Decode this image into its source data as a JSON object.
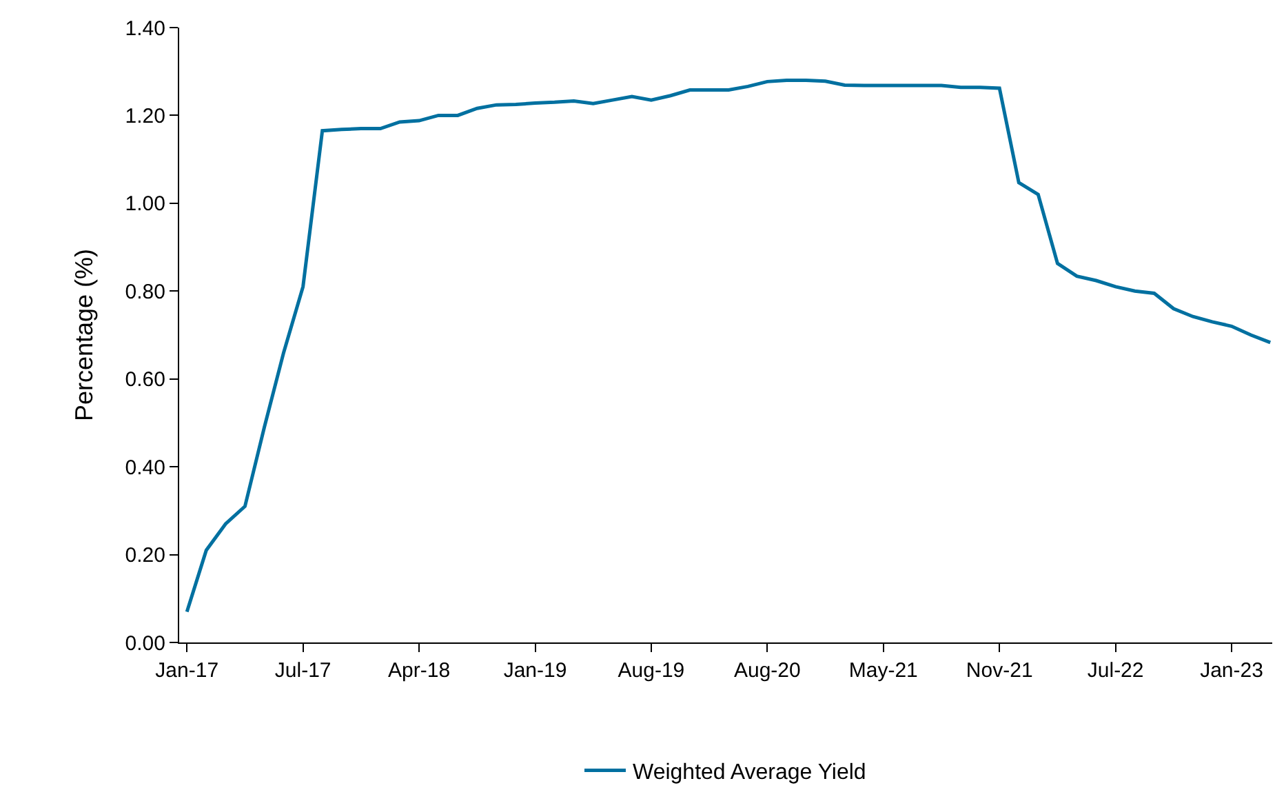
{
  "chart_data": {
    "type": "line",
    "ylabel": "Percentage (%)",
    "categories": [
      "Jan-17",
      null,
      null,
      null,
      null,
      null,
      "Jul-17",
      null,
      null,
      null,
      null,
      null,
      "Apr-18",
      null,
      null,
      null,
      null,
      null,
      "Jan-19",
      null,
      null,
      null,
      null,
      null,
      "Aug-19",
      null,
      null,
      null,
      null,
      null,
      "Aug-20",
      null,
      null,
      null,
      null,
      null,
      "May-21",
      null,
      null,
      null,
      null,
      null,
      "Nov-21",
      null,
      null,
      null,
      null,
      null,
      "Jul-22",
      null,
      null,
      null,
      null,
      null,
      "Jan-23",
      null,
      null
    ],
    "series": [
      {
        "name": "Weighted Average Yield",
        "color": "#0070a0",
        "values": [
          0.07,
          0.21,
          0.27,
          0.31,
          0.49,
          0.66,
          0.81,
          1.165,
          1.168,
          1.17,
          1.17,
          1.185,
          1.188,
          1.2,
          1.2,
          1.216,
          1.224,
          1.225,
          1.228,
          1.23,
          1.233,
          1.227,
          1.235,
          1.243,
          1.235,
          1.245,
          1.258,
          1.258,
          1.258,
          1.266,
          1.277,
          1.28,
          1.28,
          1.278,
          1.269,
          1.268,
          1.268,
          1.268,
          1.268,
          1.268,
          1.264,
          1.264,
          1.262,
          1.047,
          1.02,
          0.863,
          0.834,
          0.824,
          0.81,
          0.8,
          0.795,
          0.76,
          0.742,
          0.73,
          0.72,
          0.7,
          0.683
        ]
      }
    ],
    "ylim": [
      0,
      1.4
    ],
    "yticks": [
      {
        "value": 0,
        "label": "0.00"
      },
      {
        "value": 0.2,
        "label": "0.20"
      },
      {
        "value": 0.4,
        "label": "0.40"
      },
      {
        "value": 0.6,
        "label": "0.60"
      },
      {
        "value": 0.8,
        "label": "0.80"
      },
      {
        "value": 1.0,
        "label": "1.00"
      },
      {
        "value": 1.2,
        "label": "1.20"
      },
      {
        "value": 1.4,
        "label": "1.40"
      }
    ],
    "legend": "bottom",
    "marker": "none",
    "line_style": "solid"
  }
}
